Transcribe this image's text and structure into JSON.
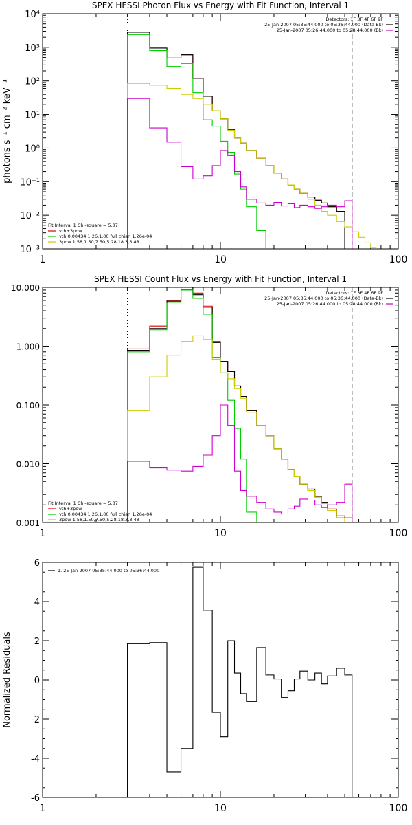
{
  "chart_data": [
    {
      "type": "line",
      "panel": "photon-flux",
      "title": "SPEX HESSI Photon Flux vs Energy with Fit Function, Interval 1",
      "xlabel": "",
      "ylabel": "photons s⁻¹ cm⁻² keV⁻¹",
      "xscale": "log",
      "yscale": "log",
      "xlim": [
        1,
        100
      ],
      "ylim": [
        0.001,
        10000
      ],
      "x_ticks": [
        1,
        10,
        100
      ],
      "x_tick_labels": [
        "1",
        "10",
        "100"
      ],
      "y_ticks": [
        0.001,
        0.01,
        0.1,
        1,
        10,
        100,
        1000,
        10000
      ],
      "y_tick_labels": [
        "10⁻³",
        "10⁻²",
        "10⁻¹",
        "10⁰",
        "10¹",
        "10²",
        "10³",
        "10⁴"
      ],
      "vlines": [
        {
          "x": 3,
          "style": "dotted"
        },
        {
          "x": 55,
          "style": "dashed"
        }
      ],
      "edges": [
        3,
        4,
        5,
        6,
        7,
        8,
        9,
        10,
        11,
        12,
        13,
        14,
        16,
        18,
        20,
        22,
        24,
        26,
        28,
        31,
        34,
        37,
        40,
        45,
        50,
        55,
        60,
        65,
        70,
        75,
        80,
        85
      ],
      "series": [
        {
          "name": "vth+3pow",
          "color": "#dd0000",
          "values": [
            2800,
            950,
            480,
            600,
            120,
            35,
            13,
            7.5,
            3.6,
            2.0,
            1.4,
            0.85,
            0.5,
            0.3,
            0.18,
            0.12,
            0.08,
            0.06,
            0.045,
            0.035,
            0.028,
            0.023,
            0.018,
            0.013
          ]
        },
        {
          "name": "",
          "color": "#000000",
          "values": [
            2800,
            950,
            480,
            600,
            120,
            35,
            13,
            7.5,
            3.6,
            2.0,
            1.4,
            0.85,
            0.5,
            0.3,
            0.18,
            0.12,
            0.08,
            0.06,
            0.045,
            0.035,
            0.028,
            0.023,
            0.018,
            0.013
          ]
        },
        {
          "name": "vth 0.00434,1.26,1.00  full chian 1.26e-04",
          "color": "#00cc00",
          "values": [
            2400,
            800,
            270,
            330,
            45,
            7,
            4.5,
            1.6,
            0.75,
            0.17,
            0.06,
            0.018,
            0.0035,
            0.0007
          ]
        },
        {
          "name": "3pow 1.58,1.50,7.50,5.28,18.3,3.48",
          "color": "#cccc00",
          "values": [
            85,
            75,
            60,
            40,
            30,
            20,
            13,
            7.5,
            3.4,
            2.0,
            1.4,
            0.85,
            0.5,
            0.3,
            0.18,
            0.12,
            0.08,
            0.06,
            0.045,
            0.03,
            0.02,
            0.013,
            0.01,
            0.0065,
            0.0045,
            0.0032,
            0.0022,
            0.0015,
            0.0011,
            0.0007,
            0.0005
          ]
        },
        {
          "name": "",
          "color": "#cc00cc",
          "values": [
            30,
            4,
            1.5,
            0.28,
            0.12,
            0.15,
            0.3,
            0.85,
            0.6,
            0.2,
            0.07,
            0.03,
            0.023,
            0.02,
            0.024,
            0.019,
            0.022,
            0.017,
            0.02,
            0.018,
            0.016,
            0.018,
            0.02,
            0.018,
            0.027
          ]
        }
      ],
      "legend_top": {
        "lines": [
          {
            "text": "Detectors: 1F 3F 4F 6F 9F",
            "color": "#000000"
          },
          {
            "text": "25-Jan-2007 05:35:44.000 to 05:36:44.000 (Data-Bk)",
            "color": "#000000"
          },
          {
            "text": "25-Jan-2007 05:26:44.000 to 05:28:44.000 (Bk)",
            "color": "#cc00cc"
          }
        ],
        "placement": "top-right"
      },
      "legend_bottom": {
        "header": "Fit Interval 1   Chi-square = 5.87",
        "items": [
          {
            "text": "vth+3pow",
            "color": "#dd0000"
          },
          {
            "text": "vth 0.00434,1.26,1.00  full chian 1.26e-04",
            "color": "#00cc00"
          },
          {
            "text": "3pow 1.58,1.50,7.50,5.28,18.3,3.48",
            "color": "#cccc00"
          }
        ],
        "placement": "bottom-left"
      }
    },
    {
      "type": "line",
      "panel": "count-flux",
      "title": "SPEX HESSI Count Flux vs Energy with Fit Function, Interval 1",
      "xlabel": "",
      "ylabel": "",
      "xscale": "log",
      "yscale": "log",
      "xlim": [
        1,
        100
      ],
      "ylim": [
        0.001,
        10
      ],
      "x_ticks": [
        1,
        10,
        100
      ],
      "x_tick_labels": [
        "1",
        "10",
        "100"
      ],
      "y_ticks": [
        0.001,
        0.01,
        0.1,
        1,
        10
      ],
      "y_tick_labels": [
        "0.001",
        "0.010",
        "0.100",
        "1.000",
        "10.000"
      ],
      "vlines": [
        {
          "x": 3,
          "style": "dotted"
        },
        {
          "x": 55,
          "style": "dashed"
        }
      ],
      "edges": [
        3,
        4,
        5,
        6,
        7,
        8,
        9,
        10,
        11,
        12,
        13,
        14,
        16,
        18,
        20,
        22,
        24,
        26,
        28,
        31,
        34,
        37,
        40,
        45,
        50,
        55
      ],
      "series": [
        {
          "name": "vth+3pow",
          "color": "#dd0000",
          "values": [
            0.9,
            2.2,
            6.0,
            9.2,
            8.0,
            4.8,
            1.2,
            0.55,
            0.37,
            0.21,
            0.14,
            0.08,
            0.045,
            0.03,
            0.018,
            0.012,
            0.008,
            0.006,
            0.0045,
            0.0035,
            0.0027,
            0.0022,
            0.0017,
            0.0013,
            0.0012
          ]
        },
        {
          "name": "",
          "color": "#000000",
          "values": [
            0.85,
            2.0,
            5.8,
            10.0,
            7.5,
            4.6,
            1.15,
            0.55,
            0.37,
            0.21,
            0.14,
            0.08,
            0.045,
            0.03,
            0.018,
            0.012,
            0.008,
            0.006,
            0.0045,
            0.0037,
            0.0028,
            0.0022,
            0.0016,
            0.0012,
            0.001
          ]
        },
        {
          "name": "vth 0.00434,1.26,1.00  full chian 1.26e-04",
          "color": "#00cc00",
          "values": [
            0.8,
            1.9,
            5.5,
            9.0,
            6.5,
            3.5,
            0.65,
            0.35,
            0.12,
            0.04,
            0.012,
            0.0015,
            0.0004
          ]
        },
        {
          "name": "3pow 1.58,1.50,7.50,5.28,18.3,3.48",
          "color": "#cccc00",
          "values": [
            0.08,
            0.3,
            0.7,
            1.2,
            1.5,
            1.3,
            0.6,
            0.35,
            0.28,
            0.19,
            0.13,
            0.075,
            0.045,
            0.03,
            0.018,
            0.012,
            0.008,
            0.006,
            0.0045,
            0.0035,
            0.0027,
            0.0021,
            0.0016,
            0.0012,
            0.001
          ]
        },
        {
          "name": "",
          "color": "#cc00cc",
          "values": [
            0.011,
            0.0085,
            0.0078,
            0.0075,
            0.009,
            0.014,
            0.03,
            0.1,
            0.045,
            0.0075,
            0.0035,
            0.0028,
            0.0022,
            0.0017,
            0.0015,
            0.0014,
            0.0017,
            0.0019,
            0.0025,
            0.0024,
            0.002,
            0.0018,
            0.002,
            0.0022,
            0.0045
          ]
        }
      ],
      "legend_top": {
        "lines": [
          {
            "text": "Detectors: 1F 3F 4F 6F 9F",
            "color": "#000000"
          },
          {
            "text": "25-Jan-2007 05:35:44.000 to 05:36:44.000 (Data-Bk)",
            "color": "#000000"
          },
          {
            "text": "25-Jan-2007 05:26:44.000 to 05:28:44.000 (Bk)",
            "color": "#cc00cc"
          }
        ],
        "placement": "top-right"
      },
      "legend_bottom": {
        "header": "Fit Interval 1   Chi-square = 5.87",
        "items": [
          {
            "text": "vth+3pow",
            "color": "#dd0000"
          },
          {
            "text": "vth 0.00434,1.26,1.00  full chian 1.26e-04",
            "color": "#00cc00"
          },
          {
            "text": "3pow 1.58,1.50,7.50,5.28,18.3,3.48",
            "color": "#cccc00"
          }
        ],
        "placement": "bottom-left"
      }
    },
    {
      "type": "line",
      "panel": "residuals",
      "title": "",
      "xlabel": "",
      "ylabel": "Normalized Residuals",
      "xscale": "log",
      "yscale": "linear",
      "xlim": [
        1,
        100
      ],
      "ylim": [
        -6,
        6
      ],
      "x_ticks": [
        1,
        10,
        100
      ],
      "x_tick_labels": [
        "1",
        "10",
        "100"
      ],
      "y_ticks": [
        -6,
        -4,
        -2,
        0,
        2,
        4,
        6
      ],
      "y_tick_labels": [
        "-6",
        "-4",
        "-2",
        "0",
        "2",
        "4",
        "6"
      ],
      "vlines": [],
      "edges": [
        3,
        4,
        5,
        6,
        7,
        8,
        9,
        10,
        11,
        12,
        13,
        14,
        16,
        18,
        20,
        22,
        24,
        26,
        28,
        31,
        34,
        37,
        40,
        45,
        50,
        55
      ],
      "series": [
        {
          "name": "1. 25-Jan-2007 05:35:44.000 to 05:36:44.000",
          "color": "#000000",
          "values": [
            1.85,
            1.9,
            -4.7,
            -3.5,
            5.75,
            3.55,
            -1.65,
            -2.9,
            2.0,
            0.35,
            -0.7,
            -1.1,
            1.65,
            0.25,
            0.05,
            -0.9,
            -0.55,
            0.05,
            0.45,
            0.0,
            0.35,
            -0.2,
            0.2,
            0.6,
            0.25
          ]
        }
      ],
      "legend_top": {
        "lines": [
          {
            "text": "1. 25-Jan-2007 05:35:44.000 to 05:36:44.000",
            "color": "#000000"
          }
        ],
        "placement": "top-left"
      }
    }
  ]
}
